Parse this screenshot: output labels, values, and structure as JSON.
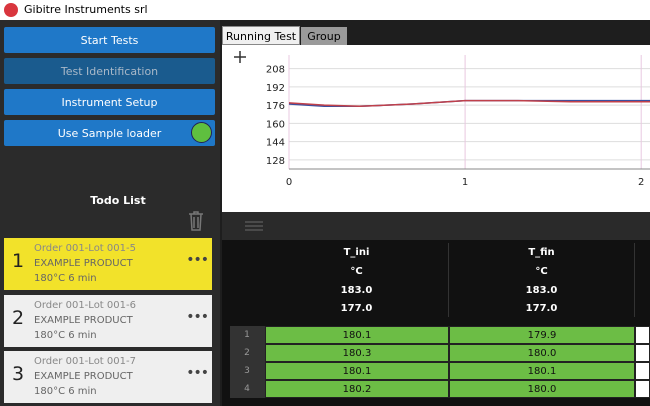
{
  "window": {
    "title": "Gibitre Instruments srl"
  },
  "sidebar": {
    "buttons": [
      "Start Tests",
      "Test Identification",
      "Instrument Setup",
      "Use Sample loader"
    ],
    "todo_title": "Todo List",
    "todo": [
      {
        "index": "1",
        "order": "Order 001-Lot 001-5",
        "product": "EXAMPLE PRODUCT",
        "conditions": "180°C 6 min"
      },
      {
        "index": "2",
        "order": "Order 001-Lot 001-6",
        "product": "EXAMPLE PRODUCT",
        "conditions": "180°C 6 min"
      },
      {
        "index": "3",
        "order": "Order 001-Lot 001-7",
        "product": "EXAMPLE PRODUCT",
        "conditions": "180°C 6 min"
      }
    ]
  },
  "tabs": [
    "Running Test",
    "Group"
  ],
  "chart_data": {
    "type": "line",
    "xlim": [
      0,
      2.05
    ],
    "xticks": [
      0,
      1,
      2
    ],
    "ylim": [
      120,
      220
    ],
    "yticks": [
      128,
      144,
      160,
      176,
      192,
      208
    ],
    "grid": true,
    "series": [
      {
        "color": "#3a4fa0",
        "x": [
          0,
          0.2,
          0.4,
          0.7,
          1,
          1.3,
          1.6,
          2,
          2.05
        ],
        "values": [
          177,
          175,
          175,
          177,
          180,
          180,
          180,
          180,
          180
        ]
      },
      {
        "color": "#c0404a",
        "x": [
          0,
          0.2,
          0.4,
          0.7,
          1,
          1.3,
          1.6,
          2,
          2.05
        ],
        "values": [
          178,
          176,
          175,
          177,
          180,
          180,
          179,
          179,
          179
        ]
      }
    ]
  },
  "table": {
    "headers": [
      "T_ini",
      "T_fin"
    ],
    "units": [
      "°C",
      "°C"
    ],
    "summary": [
      [
        "183.0",
        "183.0"
      ],
      [
        "177.0",
        "177.0"
      ]
    ],
    "rows": [
      [
        "1",
        "180.1",
        "179.9"
      ],
      [
        "2",
        "180.3",
        "180.0"
      ],
      [
        "3",
        "180.1",
        "180.1"
      ],
      [
        "4",
        "180.2",
        "180.0"
      ]
    ]
  }
}
